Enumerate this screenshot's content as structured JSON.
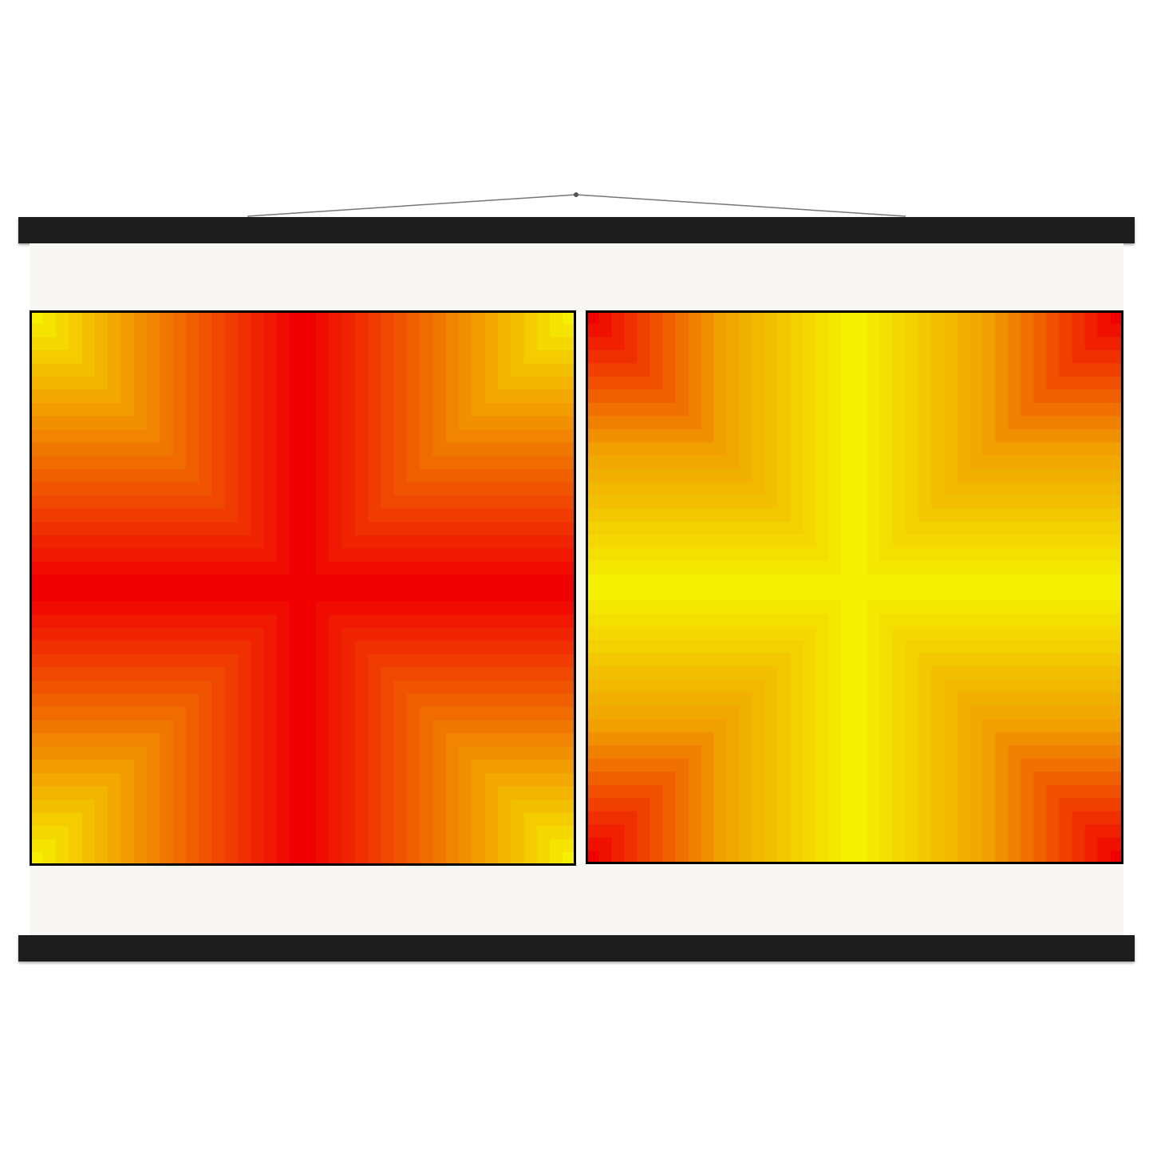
{
  "poster": {
    "hanger_color": "#1c1c1c",
    "paper_color": "#f8f7f4",
    "panels": [
      {
        "pattern": "cross-gradient",
        "center_color": "#f00000",
        "mid_color": "#f07800",
        "edge_color": "#f5f000"
      },
      {
        "pattern": "cross-gradient",
        "center_color": "#f5f000",
        "mid_color": "#f0a000",
        "edge_color": "#f00000"
      }
    ]
  }
}
